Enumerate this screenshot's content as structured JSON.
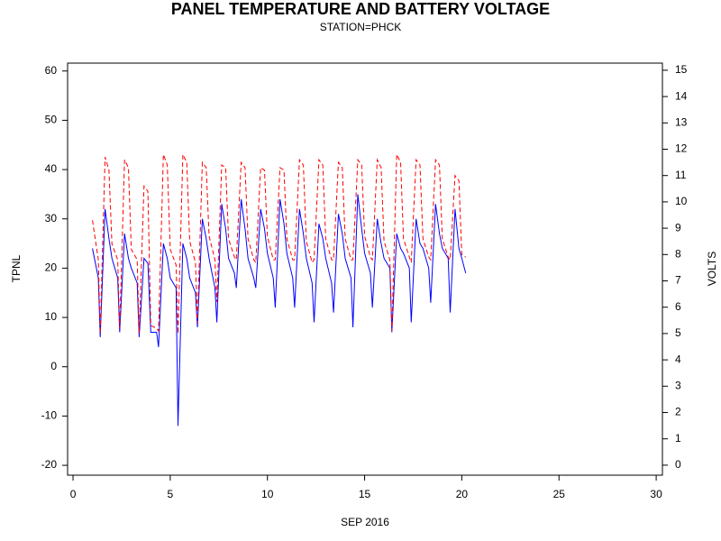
{
  "chart_data": {
    "type": "line",
    "title": "PANEL TEMPERATURE AND BATTERY VOLTAGE",
    "subtitle": "STATION=PHCK",
    "xlabel": "SEP 2016",
    "ylabel": "TPNL",
    "y2label": "VOLTS",
    "xlim": [
      -0.28,
      30.32
    ],
    "xticks": [
      0,
      5,
      10,
      15,
      20,
      25,
      30
    ],
    "ylim": [
      -22,
      61.6
    ],
    "yticks": [
      -20,
      -10,
      0,
      10,
      20,
      30,
      40,
      50,
      60
    ],
    "y2lim": [
      -0.38,
      15.27
    ],
    "y2ticks": [
      0,
      1,
      2,
      3,
      4,
      5,
      6,
      7,
      8,
      9,
      10,
      11,
      12,
      13,
      14,
      15
    ],
    "x": [
      1,
      1.3,
      1.4,
      1.65,
      1.85,
      2,
      2.3,
      2.4,
      2.65,
      2.85,
      3,
      3.3,
      3.4,
      3.65,
      3.85,
      4,
      4.3,
      4.4,
      4.65,
      4.85,
      5,
      5.3,
      5.4,
      5.65,
      5.85,
      6,
      6.3,
      6.4,
      6.65,
      6.85,
      7,
      7.3,
      7.4,
      7.65,
      7.85,
      8,
      8.3,
      8.4,
      8.65,
      8.85,
      9,
      9.3,
      9.4,
      9.65,
      9.85,
      10,
      10.3,
      10.4,
      10.65,
      10.85,
      11,
      11.3,
      11.4,
      11.65,
      11.85,
      12,
      12.3,
      12.4,
      12.65,
      12.85,
      13,
      13.3,
      13.4,
      13.65,
      13.85,
      14,
      14.3,
      14.4,
      14.65,
      14.85,
      15,
      15.3,
      15.4,
      15.65,
      15.85,
      16,
      16.3,
      16.4,
      16.65,
      16.85,
      17,
      17.3,
      17.4,
      17.65,
      17.85,
      18,
      18.3,
      18.4,
      18.65,
      18.85,
      19,
      19.3,
      19.4,
      19.65,
      19.85,
      20,
      20.2
    ],
    "series": [
      {
        "color": "#0000ff",
        "axis": "y",
        "dashed": false,
        "values": [
          24,
          18,
          6,
          32,
          26,
          22,
          18,
          7,
          27,
          22,
          20,
          17,
          6,
          22,
          21,
          7,
          7,
          4,
          25,
          22,
          18,
          16,
          -12,
          25,
          22,
          18,
          15,
          8,
          30,
          26,
          22,
          16,
          9,
          33,
          28,
          22,
          19,
          16,
          34,
          28,
          22,
          18,
          16,
          32,
          28,
          23,
          18,
          12,
          34,
          29,
          23,
          18,
          12,
          32,
          27,
          22,
          17,
          9,
          29,
          26,
          22,
          17,
          11,
          31,
          27,
          22,
          18,
          8,
          35,
          28,
          23,
          19,
          12,
          30,
          25,
          22,
          20,
          7,
          27,
          24,
          23,
          20,
          9,
          30,
          25,
          24,
          20,
          13,
          33,
          27,
          24,
          22,
          11,
          32,
          24,
          22,
          19
        ]
      },
      {
        "color": "#ff0000",
        "axis": "y2",
        "dashed": true,
        "values": [
          9.3,
          7.8,
          5.0,
          11.7,
          11.2,
          8.4,
          7.8,
          5.2,
          11.6,
          11.3,
          8.2,
          7.8,
          5.0,
          10.6,
          10.4,
          5.3,
          5.2,
          5.1,
          11.8,
          11.4,
          8.2,
          7.6,
          5.0,
          11.8,
          11.5,
          8.5,
          7.7,
          5.4,
          11.5,
          11.3,
          8.7,
          7.8,
          6.2,
          11.4,
          11.3,
          8.6,
          7.9,
          7.8,
          11.5,
          11.3,
          8.6,
          7.8,
          7.7,
          11.3,
          11.2,
          8.7,
          7.8,
          7.8,
          11.3,
          11.2,
          8.6,
          7.8,
          7.8,
          11.6,
          11.4,
          8.5,
          7.7,
          7.8,
          11.6,
          11.4,
          8.6,
          7.8,
          7.8,
          11.5,
          11.3,
          8.6,
          7.8,
          7.8,
          11.6,
          11.4,
          8.7,
          7.9,
          7.8,
          11.6,
          11.3,
          8.5,
          7.8,
          5.1,
          11.8,
          11.5,
          8.6,
          7.9,
          7.7,
          11.6,
          11.4,
          8.6,
          7.9,
          7.8,
          11.6,
          11.4,
          8.6,
          7.9,
          7.8,
          11.0,
          10.8,
          8.0,
          7.9
        ]
      }
    ]
  }
}
